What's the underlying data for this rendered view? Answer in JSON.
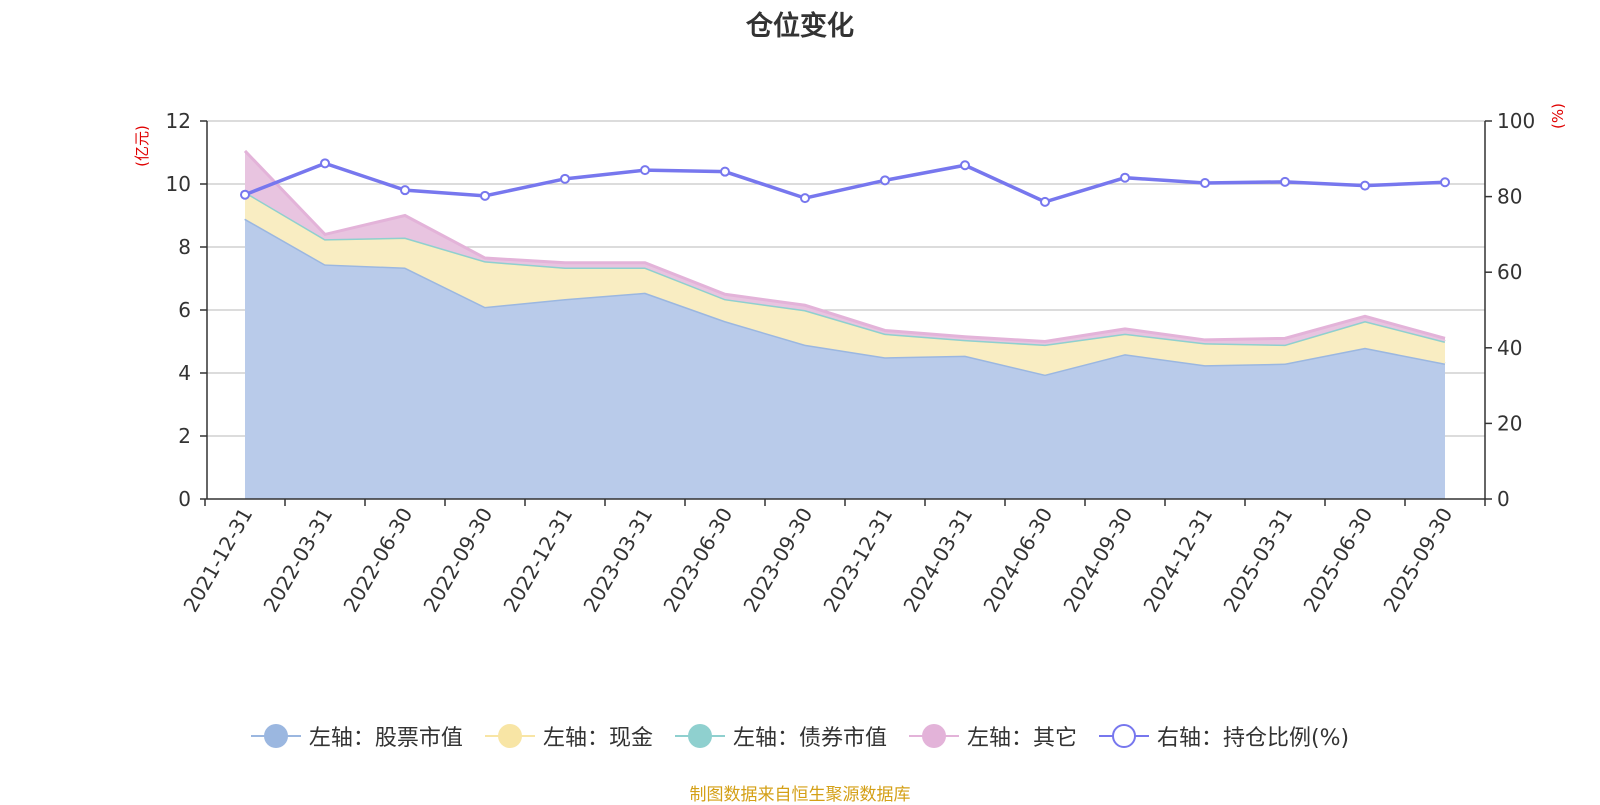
{
  "chart_data": {
    "type": "area",
    "title": "仓位变化",
    "categories": [
      "2021-12-31",
      "2022-03-31",
      "2022-06-30",
      "2022-09-30",
      "2022-12-31",
      "2023-03-31",
      "2023-06-30",
      "2023-09-30",
      "2023-12-31",
      "2024-03-31",
      "2024-06-30",
      "2024-09-30",
      "2024-12-31",
      "2025-03-31",
      "2025-06-30",
      "2025-09-30"
    ],
    "y_left": {
      "unit": "(亿元)",
      "ylim": [
        0,
        12
      ],
      "ticks": [
        "0",
        "2",
        "4",
        "6",
        "8",
        "10",
        "12"
      ]
    },
    "y_right": {
      "unit": "(%)",
      "ylim": [
        0,
        100
      ],
      "ticks": [
        "0",
        "20",
        "40",
        "60",
        "80",
        "100"
      ]
    },
    "stacked_series": [
      {
        "name": "左轴：股票市值",
        "axis": "left",
        "color": "#9bb7e0",
        "fill": "#b9cbea",
        "values": [
          8.9,
          7.45,
          7.35,
          6.1,
          6.35,
          6.55,
          5.65,
          4.9,
          4.5,
          4.55,
          3.95,
          4.6,
          4.25,
          4.3,
          4.8,
          4.3
        ]
      },
      {
        "name": "左轴：现金",
        "axis": "left",
        "color": "#f8e5a5",
        "fill": "#f9edc2",
        "values": [
          0.85,
          0.8,
          0.95,
          1.45,
          1.0,
          0.8,
          0.7,
          1.1,
          0.75,
          0.5,
          0.95,
          0.65,
          0.7,
          0.6,
          0.85,
          0.7
        ]
      },
      {
        "name": "左轴：债券市值",
        "axis": "left",
        "color": "#8fd0cf",
        "fill": "#a8dcdb",
        "values": [
          0,
          0,
          0,
          0,
          0,
          0,
          0,
          0,
          0,
          0,
          0,
          0,
          0,
          0,
          0,
          0
        ]
      },
      {
        "name": "左轴：其它",
        "axis": "left",
        "color": "#e3b3d9",
        "fill": "#e8c4e0",
        "values": [
          1.3,
          0.15,
          0.7,
          0.1,
          0.15,
          0.15,
          0.15,
          0.15,
          0.1,
          0.1,
          0.1,
          0.15,
          0.1,
          0.2,
          0.15,
          0.1
        ]
      }
    ],
    "line_series": {
      "name": "右轴：持仓比例(%)",
      "axis": "right",
      "color": "#7777ee",
      "values": [
        80.5,
        88.8,
        81.7,
        80.2,
        84.7,
        87.0,
        86.6,
        79.6,
        84.3,
        88.3,
        78.6,
        85.0,
        83.6,
        83.9,
        82.9,
        83.8
      ]
    },
    "legend_position": "bottom"
  },
  "legend": [
    {
      "label": "左轴：股票市值",
      "color": "#9bb7e0",
      "hollow": false
    },
    {
      "label": "左轴：现金",
      "color": "#f8e5a5",
      "hollow": false
    },
    {
      "label": "左轴：债券市值",
      "color": "#8fd0cf",
      "hollow": false
    },
    {
      "label": "左轴：其它",
      "color": "#e3b3d9",
      "hollow": false
    },
    {
      "label": "右轴：持仓比例(%)",
      "color": "#7777ee",
      "hollow": true
    }
  ],
  "source": "制图数据来自恒生聚源数据库"
}
